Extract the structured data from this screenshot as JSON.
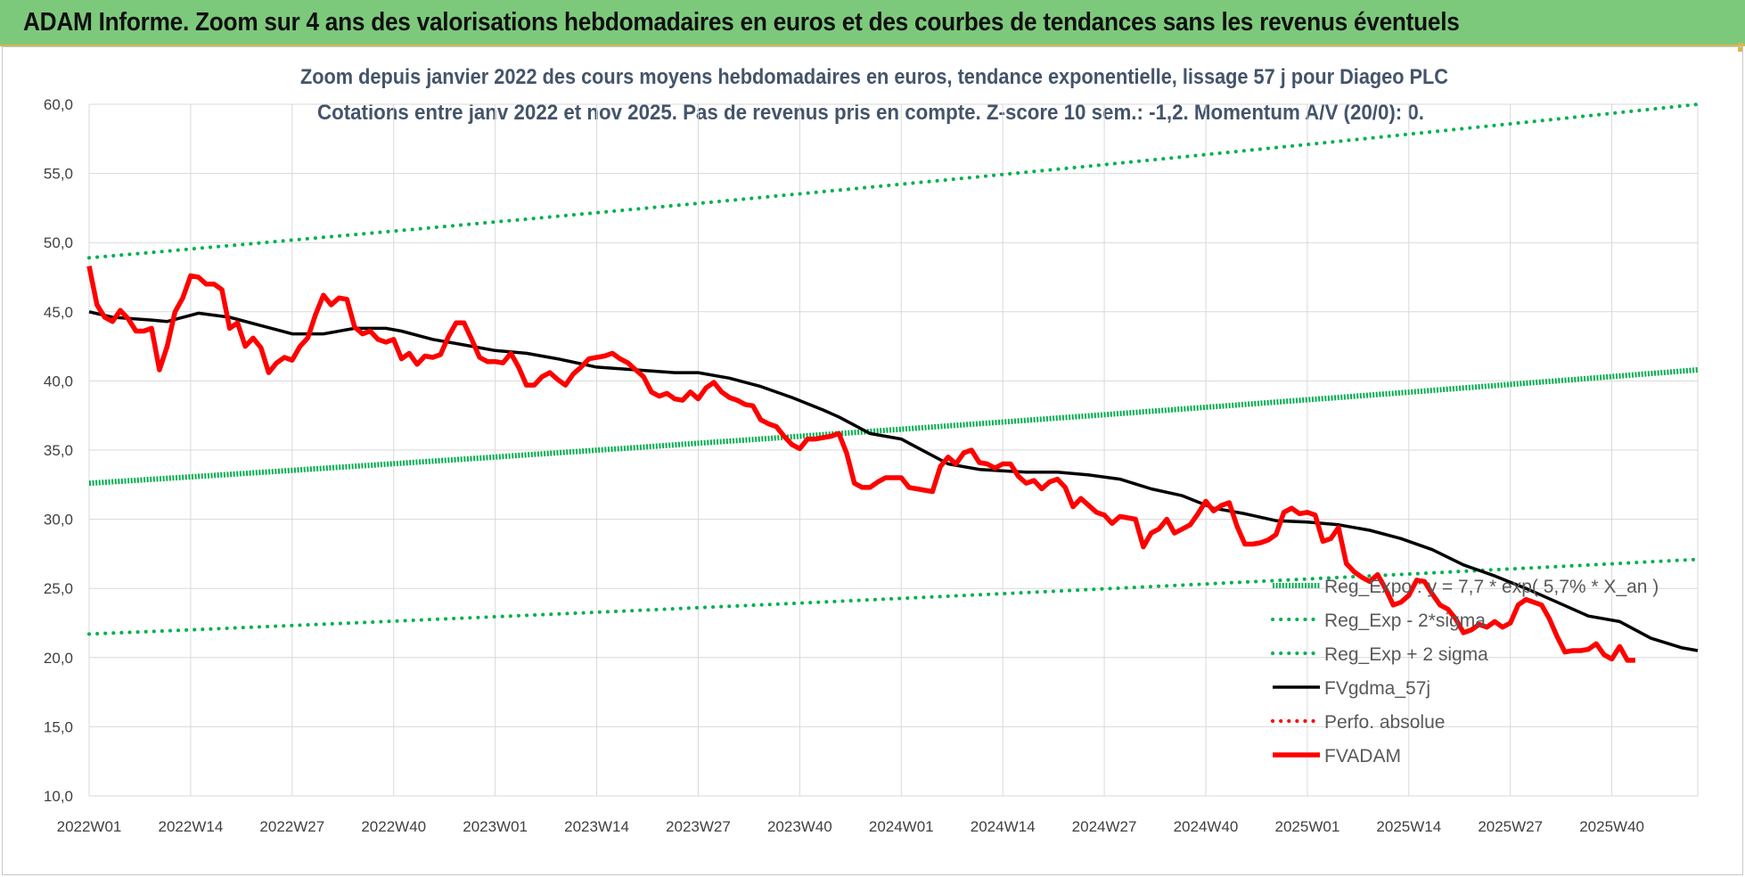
{
  "banner": {
    "title": "ADAM Informe. Zoom sur 4 ans des valorisations hebdomadaires en euros et des courbes de tendances sans les revenus éventuels"
  },
  "chart_data": {
    "type": "line",
    "subtitle_line1": "Zoom depuis janvier 2022 des cours moyens hebdomadaires en euros, tendance exponentielle, lissage 57 j pour Diageo PLC",
    "subtitle_line2": "Cotations entre janv 2022 et nov 2025. Pas de revenus pris en compte. Z-score 10 sem.: -1,2. Momentum A/V (20/0): 0.",
    "ylim": [
      10,
      60
    ],
    "y_ticks": [
      "10,0",
      "15,0",
      "20,0",
      "25,0",
      "30,0",
      "35,0",
      "40,0",
      "45,0",
      "50,0",
      "55,0",
      "60,0"
    ],
    "x_ticks": [
      "2022W01",
      "2022W14",
      "2022W27",
      "2022W40",
      "2023W01",
      "2023W14",
      "2023W27",
      "2023W40",
      "2024W01",
      "2024W14",
      "2024W27",
      "2024W40",
      "2025W01",
      "2025W14",
      "2025W27",
      "2025W40"
    ],
    "grid": true,
    "legend_position": "bottom-right",
    "series": [
      {
        "name": "Reg_Expo : y = 7,7 * exp( 5,7% * X_an )",
        "style": "solid",
        "color": "#00b050",
        "points": [
          [
            0,
            32.6
          ],
          [
            206,
            40.8
          ]
        ]
      },
      {
        "name": "Reg_Exp - 2*sigma",
        "style": "dotted",
        "color": "#00b050",
        "points": [
          [
            0,
            21.7
          ],
          [
            206,
            27.1
          ]
        ]
      },
      {
        "name": "Reg_Exp + 2 sigma",
        "style": "dotted",
        "color": "#00b050",
        "points": [
          [
            0,
            48.9
          ],
          [
            206,
            60.0
          ]
        ]
      },
      {
        "name": "FVgdma_57j",
        "style": "solid",
        "color": "#000000",
        "points": [
          [
            0,
            45.0
          ],
          [
            3,
            44.6
          ],
          [
            8,
            44.4
          ],
          [
            10,
            44.3
          ],
          [
            14,
            44.9
          ],
          [
            18,
            44.6
          ],
          [
            22,
            44.0
          ],
          [
            26,
            43.4
          ],
          [
            30,
            43.4
          ],
          [
            34,
            43.8
          ],
          [
            38,
            43.8
          ],
          [
            40,
            43.6
          ],
          [
            44,
            43.0
          ],
          [
            48,
            42.6
          ],
          [
            52,
            42.2
          ],
          [
            56,
            42.0
          ],
          [
            60,
            41.6
          ],
          [
            65,
            41.0
          ],
          [
            70,
            40.8
          ],
          [
            75,
            40.6
          ],
          [
            78,
            40.6
          ],
          [
            82,
            40.2
          ],
          [
            86,
            39.6
          ],
          [
            90,
            38.8
          ],
          [
            94,
            37.9
          ],
          [
            96,
            37.4
          ],
          [
            98,
            36.8
          ],
          [
            100,
            36.2
          ],
          [
            104,
            35.8
          ],
          [
            106,
            35.2
          ],
          [
            108,
            34.6
          ],
          [
            110,
            34.0
          ],
          [
            114,
            33.6
          ],
          [
            120,
            33.4
          ],
          [
            124,
            33.4
          ],
          [
            128,
            33.2
          ],
          [
            132,
            32.9
          ],
          [
            136,
            32.2
          ],
          [
            140,
            31.7
          ],
          [
            144,
            30.8
          ],
          [
            148,
            30.4
          ],
          [
            152,
            29.9
          ],
          [
            156,
            29.8
          ],
          [
            160,
            29.6
          ],
          [
            164,
            29.2
          ],
          [
            168,
            28.6
          ],
          [
            172,
            27.8
          ],
          [
            176,
            26.7
          ],
          [
            180,
            25.9
          ],
          [
            184,
            25.0
          ],
          [
            188,
            24.0
          ],
          [
            192,
            23.0
          ],
          [
            196,
            22.6
          ],
          [
            200,
            21.4
          ],
          [
            204,
            20.7
          ],
          [
            206,
            20.5
          ]
        ]
      },
      {
        "name": "Perfo. absolue",
        "style": "dotted",
        "color": "#ff0000",
        "points": []
      },
      {
        "name": "FVADAM",
        "style": "solid",
        "color": "#ff0000",
        "points": [
          [
            0,
            48.3
          ],
          [
            1,
            45.5
          ],
          [
            2,
            44.6
          ],
          [
            3,
            44.3
          ],
          [
            4,
            45.1
          ],
          [
            5,
            44.5
          ],
          [
            6,
            43.6
          ],
          [
            7,
            43.6
          ],
          [
            8,
            43.8
          ],
          [
            9,
            40.8
          ],
          [
            10,
            42.5
          ],
          [
            11,
            45.0
          ],
          [
            12,
            46.0
          ],
          [
            13,
            47.6
          ],
          [
            14,
            47.5
          ],
          [
            15,
            47.0
          ],
          [
            16,
            47.0
          ],
          [
            17,
            46.6
          ],
          [
            18,
            43.8
          ],
          [
            19,
            44.2
          ],
          [
            20,
            42.5
          ],
          [
            21,
            43.1
          ],
          [
            22,
            42.4
          ],
          [
            23,
            40.6
          ],
          [
            24,
            41.3
          ],
          [
            25,
            41.7
          ],
          [
            26,
            41.5
          ],
          [
            27,
            42.5
          ],
          [
            28,
            43.1
          ],
          [
            29,
            44.8
          ],
          [
            30,
            46.2
          ],
          [
            31,
            45.5
          ],
          [
            32,
            46.0
          ],
          [
            33,
            45.9
          ],
          [
            34,
            43.9
          ],
          [
            35,
            43.4
          ],
          [
            36,
            43.6
          ],
          [
            37,
            43.0
          ],
          [
            38,
            42.8
          ],
          [
            39,
            43.0
          ],
          [
            40,
            41.6
          ],
          [
            41,
            42.0
          ],
          [
            42,
            41.2
          ],
          [
            43,
            41.8
          ],
          [
            44,
            41.7
          ],
          [
            45,
            41.9
          ],
          [
            46,
            43.2
          ],
          [
            47,
            44.2
          ],
          [
            48,
            44.2
          ],
          [
            49,
            43.0
          ],
          [
            50,
            41.7
          ],
          [
            51,
            41.4
          ],
          [
            52,
            41.4
          ],
          [
            53,
            41.3
          ],
          [
            54,
            42.0
          ],
          [
            55,
            41.0
          ],
          [
            56,
            39.7
          ],
          [
            57,
            39.7
          ],
          [
            58,
            40.3
          ],
          [
            59,
            40.6
          ],
          [
            60,
            40.1
          ],
          [
            61,
            39.7
          ],
          [
            62,
            40.5
          ],
          [
            63,
            41.0
          ],
          [
            64,
            41.6
          ],
          [
            65,
            41.7
          ],
          [
            66,
            41.8
          ],
          [
            67,
            42.0
          ],
          [
            68,
            41.6
          ],
          [
            69,
            41.3
          ],
          [
            70,
            40.8
          ],
          [
            71,
            40.3
          ],
          [
            72,
            39.2
          ],
          [
            73,
            38.9
          ],
          [
            74,
            39.1
          ],
          [
            75,
            38.7
          ],
          [
            76,
            38.6
          ],
          [
            77,
            39.2
          ],
          [
            78,
            38.7
          ],
          [
            79,
            39.5
          ],
          [
            80,
            39.9
          ],
          [
            81,
            39.2
          ],
          [
            82,
            38.8
          ],
          [
            83,
            38.6
          ],
          [
            84,
            38.3
          ],
          [
            85,
            38.2
          ],
          [
            86,
            37.2
          ],
          [
            87,
            36.9
          ],
          [
            88,
            36.7
          ],
          [
            89,
            36.0
          ],
          [
            90,
            35.4
          ],
          [
            91,
            35.1
          ],
          [
            92,
            35.8
          ],
          [
            93,
            35.8
          ],
          [
            94,
            35.9
          ],
          [
            95,
            36.0
          ],
          [
            96,
            36.2
          ],
          [
            97,
            34.8
          ],
          [
            98,
            32.6
          ],
          [
            99,
            32.3
          ],
          [
            100,
            32.3
          ],
          [
            101,
            32.7
          ],
          [
            102,
            33.0
          ],
          [
            103,
            33.0
          ],
          [
            104,
            33.0
          ],
          [
            105,
            32.3
          ],
          [
            106,
            32.2
          ],
          [
            107,
            32.1
          ],
          [
            108,
            32.0
          ],
          [
            109,
            33.8
          ],
          [
            110,
            34.5
          ],
          [
            111,
            34.0
          ],
          [
            112,
            34.8
          ],
          [
            113,
            35.0
          ],
          [
            114,
            34.1
          ],
          [
            115,
            34.0
          ],
          [
            116,
            33.7
          ],
          [
            117,
            34.0
          ],
          [
            118,
            34.0
          ],
          [
            119,
            33.1
          ],
          [
            120,
            32.6
          ],
          [
            121,
            32.8
          ],
          [
            122,
            32.2
          ],
          [
            123,
            32.7
          ],
          [
            124,
            32.9
          ],
          [
            125,
            32.3
          ],
          [
            126,
            30.9
          ],
          [
            127,
            31.5
          ],
          [
            128,
            31.0
          ],
          [
            129,
            30.5
          ],
          [
            130,
            30.3
          ],
          [
            131,
            29.7
          ],
          [
            132,
            30.2
          ],
          [
            133,
            30.1
          ],
          [
            134,
            30.0
          ],
          [
            135,
            28.0
          ],
          [
            136,
            29.0
          ],
          [
            137,
            29.3
          ],
          [
            138,
            30.0
          ],
          [
            139,
            29.0
          ],
          [
            140,
            29.3
          ],
          [
            141,
            29.6
          ],
          [
            142,
            30.4
          ],
          [
            143,
            31.3
          ],
          [
            144,
            30.6
          ],
          [
            145,
            31.0
          ],
          [
            146,
            31.2
          ],
          [
            147,
            29.5
          ],
          [
            148,
            28.2
          ],
          [
            149,
            28.2
          ],
          [
            150,
            28.3
          ],
          [
            151,
            28.5
          ],
          [
            152,
            28.9
          ],
          [
            153,
            30.5
          ],
          [
            154,
            30.8
          ],
          [
            155,
            30.4
          ],
          [
            156,
            30.5
          ],
          [
            157,
            30.3
          ],
          [
            158,
            28.4
          ],
          [
            159,
            28.6
          ],
          [
            160,
            29.4
          ],
          [
            161,
            26.8
          ],
          [
            162,
            26.2
          ],
          [
            163,
            25.8
          ],
          [
            164,
            25.5
          ],
          [
            165,
            26.0
          ],
          [
            166,
            25.0
          ],
          [
            167,
            23.8
          ],
          [
            168,
            24.0
          ],
          [
            169,
            24.5
          ],
          [
            170,
            25.6
          ],
          [
            171,
            25.5
          ],
          [
            172,
            24.6
          ],
          [
            173,
            23.8
          ],
          [
            174,
            23.5
          ],
          [
            175,
            22.8
          ],
          [
            176,
            21.8
          ],
          [
            177,
            22.0
          ],
          [
            178,
            22.4
          ],
          [
            179,
            22.2
          ],
          [
            180,
            22.6
          ],
          [
            181,
            22.2
          ],
          [
            182,
            22.5
          ],
          [
            183,
            23.8
          ],
          [
            184,
            24.2
          ],
          [
            185,
            24.0
          ],
          [
            186,
            23.8
          ],
          [
            187,
            22.8
          ],
          [
            188,
            21.5
          ],
          [
            189,
            20.4
          ],
          [
            190,
            20.5
          ],
          [
            191,
            20.5
          ],
          [
            192,
            20.6
          ],
          [
            193,
            21.0
          ],
          [
            194,
            20.2
          ],
          [
            195,
            19.9
          ],
          [
            196,
            20.8
          ],
          [
            197,
            19.8
          ],
          [
            198,
            19.8
          ]
        ]
      }
    ]
  }
}
